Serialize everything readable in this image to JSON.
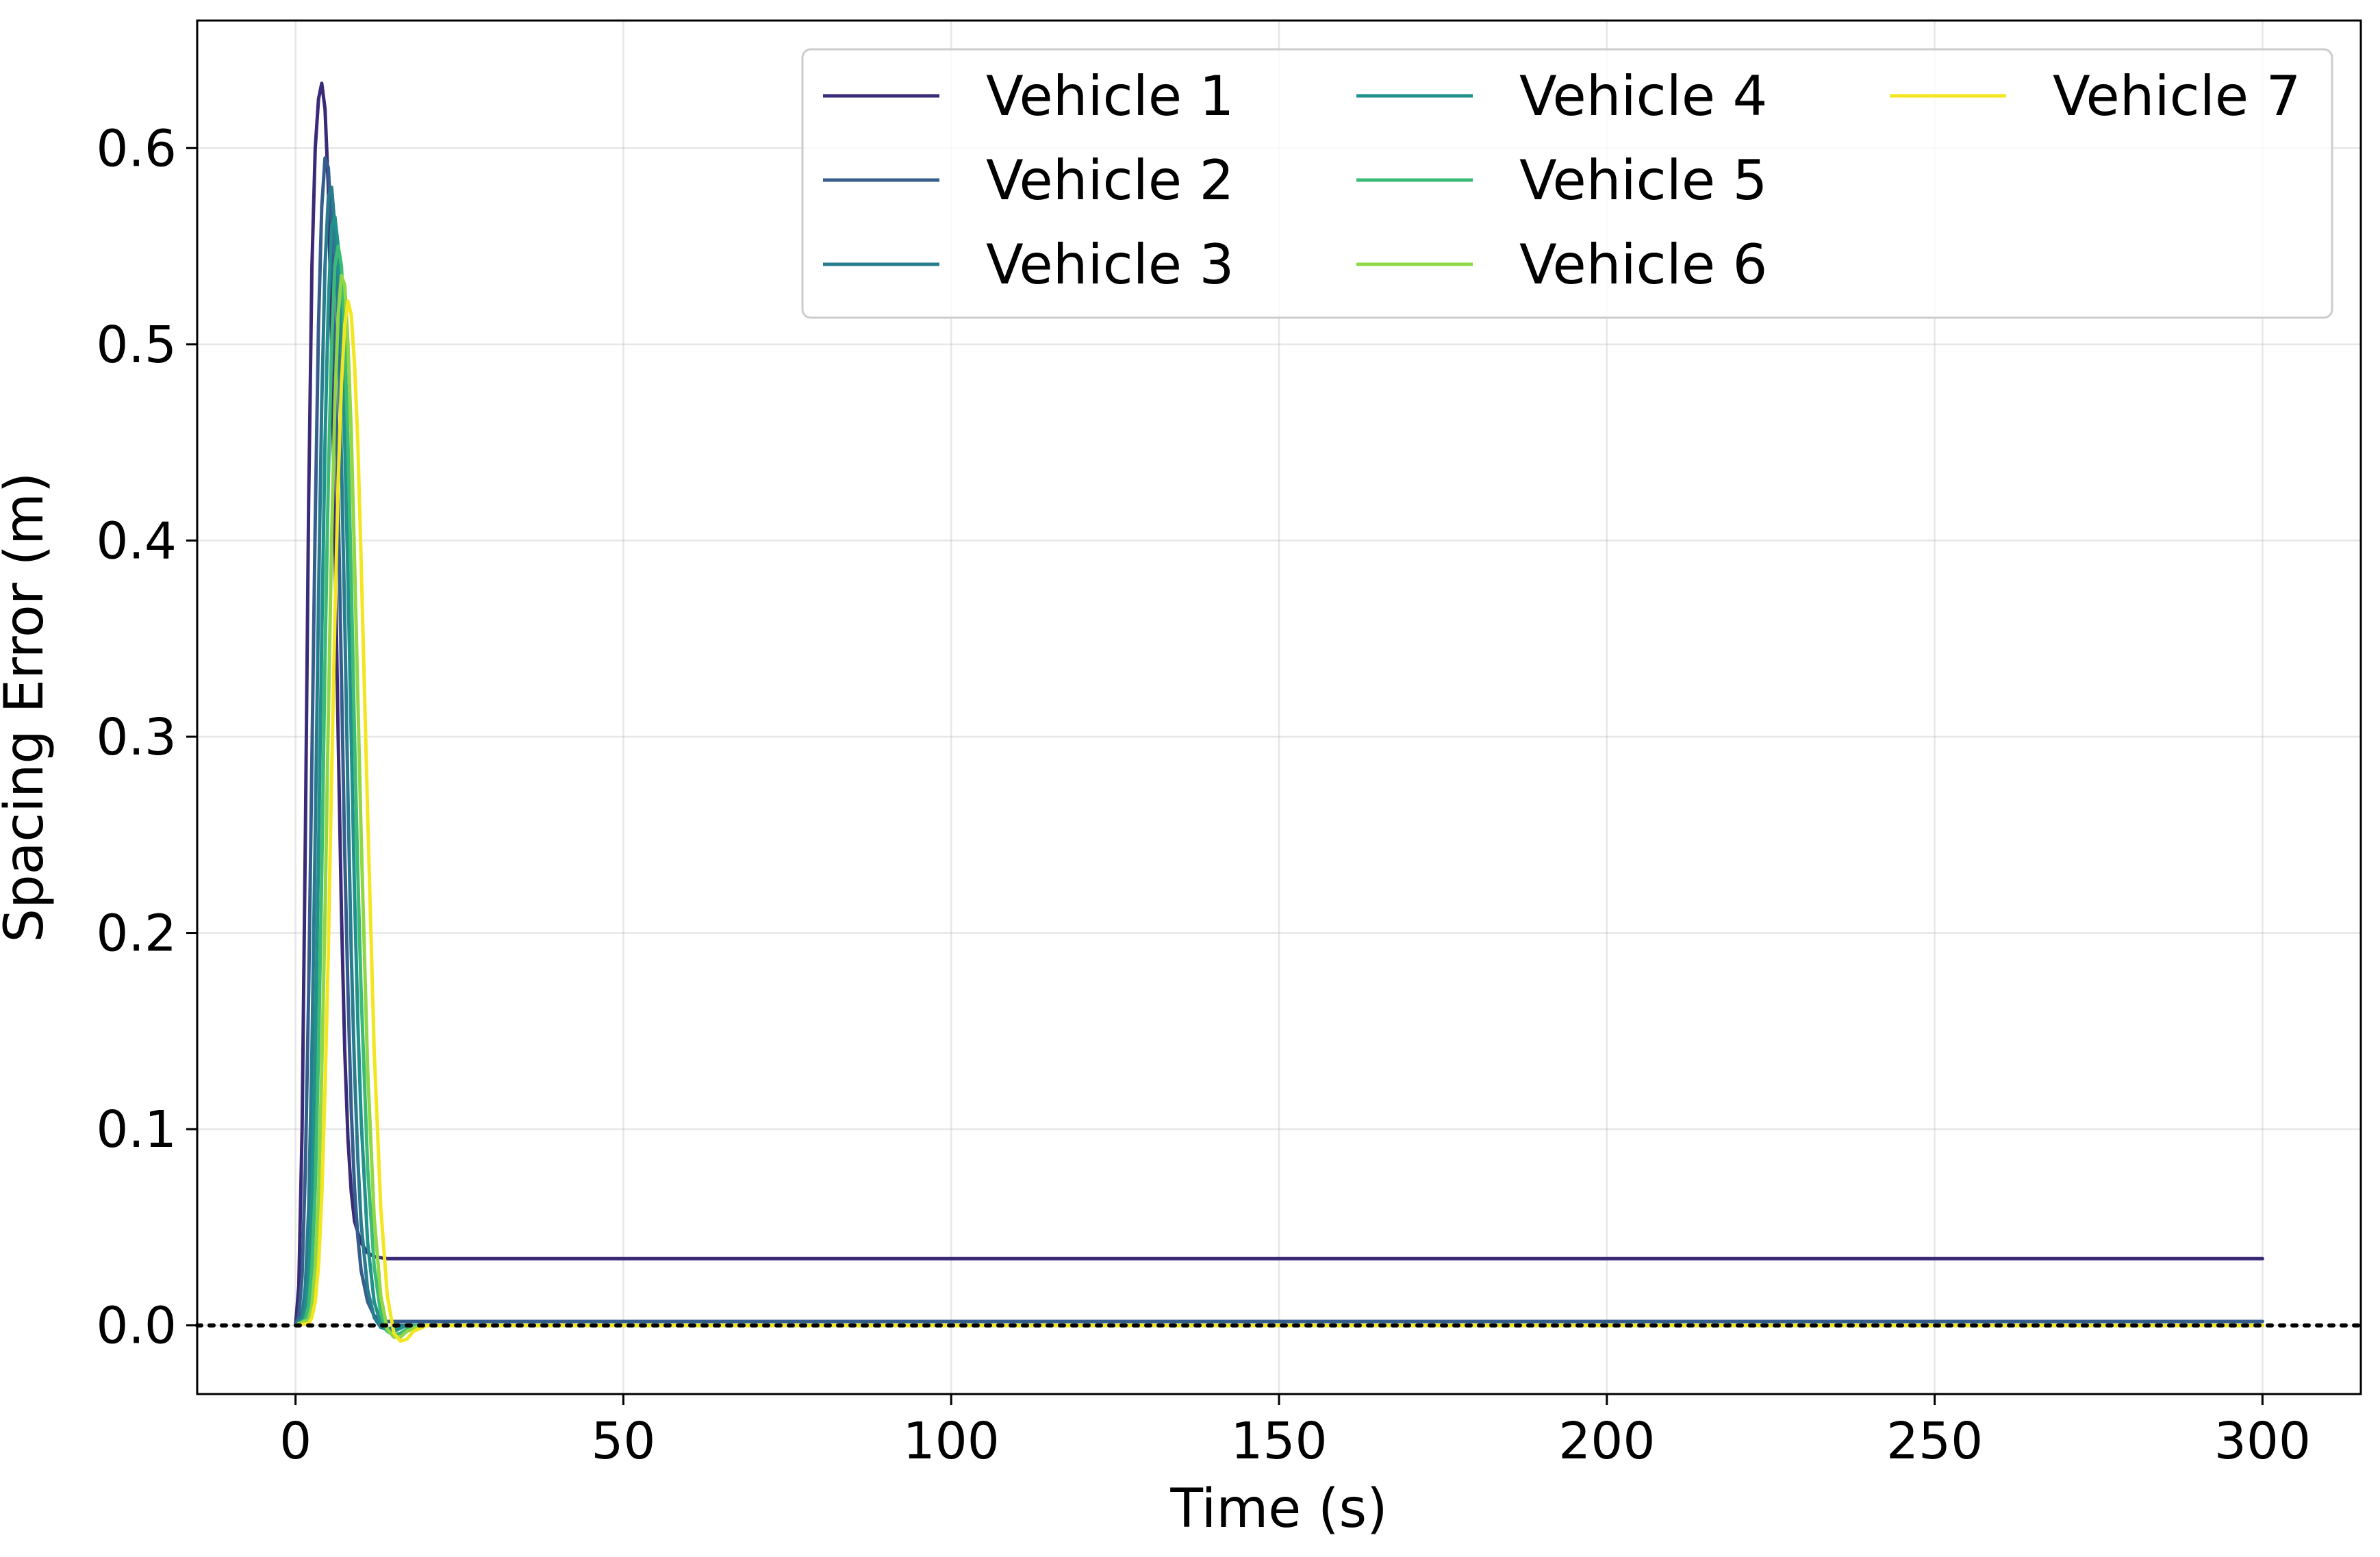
{
  "chart_data": {
    "type": "line",
    "title": "",
    "xlabel": "Time (s)",
    "ylabel": "Spacing Error (m)",
    "xlim": [
      -15,
      315
    ],
    "ylim": [
      -0.035,
      0.665
    ],
    "xticks": [
      0,
      50,
      100,
      150,
      200,
      250,
      300
    ],
    "yticks": [
      0.0,
      0.1,
      0.2,
      0.3,
      0.4,
      0.5,
      0.6
    ],
    "ytick_labels": [
      "0.0",
      "0.1",
      "0.2",
      "0.3",
      "0.4",
      "0.5",
      "0.6"
    ],
    "grid": true,
    "legend_position": "upper-right",
    "legend_columns": 3,
    "reference_line": {
      "y": 0.0,
      "style": "dotted",
      "color": "#000000"
    },
    "series": [
      {
        "name": "Vehicle 1",
        "color": "#3b2a78",
        "points": [
          [
            0,
            0
          ],
          [
            0.5,
            0.02
          ],
          [
            1,
            0.1
          ],
          [
            1.5,
            0.25
          ],
          [
            2,
            0.42
          ],
          [
            2.5,
            0.54
          ],
          [
            3,
            0.6
          ],
          [
            3.5,
            0.625
          ],
          [
            4,
            0.633
          ],
          [
            4.5,
            0.62
          ],
          [
            5,
            0.58
          ],
          [
            5.5,
            0.5
          ],
          [
            6,
            0.4
          ],
          [
            6.5,
            0.3
          ],
          [
            7,
            0.21
          ],
          [
            7.5,
            0.14
          ],
          [
            8,
            0.095
          ],
          [
            8.5,
            0.068
          ],
          [
            9,
            0.053
          ],
          [
            10,
            0.042
          ],
          [
            11,
            0.037
          ],
          [
            12,
            0.035
          ],
          [
            14,
            0.034
          ],
          [
            300,
            0.034
          ]
        ]
      },
      {
        "name": "Vehicle 2",
        "color": "#355e8d",
        "points": [
          [
            0,
            0
          ],
          [
            0.5,
            0.005
          ],
          [
            1,
            0.025
          ],
          [
            1.5,
            0.08
          ],
          [
            2,
            0.17
          ],
          [
            2.5,
            0.29
          ],
          [
            3,
            0.41
          ],
          [
            3.5,
            0.51
          ],
          [
            4,
            0.57
          ],
          [
            4.5,
            0.595
          ],
          [
            5,
            0.59
          ],
          [
            5.5,
            0.56
          ],
          [
            6,
            0.5
          ],
          [
            6.5,
            0.42
          ],
          [
            7,
            0.33
          ],
          [
            7.5,
            0.24
          ],
          [
            8,
            0.17
          ],
          [
            8.5,
            0.11
          ],
          [
            9,
            0.07
          ],
          [
            9.5,
            0.045
          ],
          [
            10,
            0.028
          ],
          [
            11,
            0.012
          ],
          [
            12,
            0.005
          ],
          [
            13,
            0.002
          ],
          [
            15,
            0.002
          ],
          [
            300,
            0.002
          ]
        ]
      },
      {
        "name": "Vehicle 3",
        "color": "#287c8e",
        "points": [
          [
            0,
            0
          ],
          [
            1,
            0.005
          ],
          [
            1.5,
            0.02
          ],
          [
            2,
            0.06
          ],
          [
            2.5,
            0.14
          ],
          [
            3,
            0.25
          ],
          [
            3.5,
            0.37
          ],
          [
            4,
            0.47
          ],
          [
            4.5,
            0.54
          ],
          [
            5,
            0.575
          ],
          [
            5.5,
            0.58
          ],
          [
            6,
            0.56
          ],
          [
            6.5,
            0.51
          ],
          [
            7,
            0.44
          ],
          [
            7.5,
            0.36
          ],
          [
            8,
            0.27
          ],
          [
            8.5,
            0.19
          ],
          [
            9,
            0.13
          ],
          [
            9.5,
            0.085
          ],
          [
            10,
            0.052
          ],
          [
            11,
            0.018
          ],
          [
            12,
            0.004
          ],
          [
            13,
            -0.001
          ],
          [
            14,
            -0.002
          ],
          [
            16,
            0.0
          ],
          [
            300,
            0.0
          ]
        ]
      },
      {
        "name": "Vehicle 4",
        "color": "#21918c",
        "points": [
          [
            0,
            0
          ],
          [
            1,
            0.002
          ],
          [
            1.5,
            0.008
          ],
          [
            2,
            0.025
          ],
          [
            2.5,
            0.065
          ],
          [
            3,
            0.14
          ],
          [
            3.5,
            0.24
          ],
          [
            4,
            0.35
          ],
          [
            4.5,
            0.45
          ],
          [
            5,
            0.52
          ],
          [
            5.5,
            0.56
          ],
          [
            6,
            0.565
          ],
          [
            6.5,
            0.55
          ],
          [
            7,
            0.51
          ],
          [
            7.5,
            0.45
          ],
          [
            8,
            0.38
          ],
          [
            8.5,
            0.3
          ],
          [
            9,
            0.22
          ],
          [
            9.5,
            0.155
          ],
          [
            10,
            0.105
          ],
          [
            11,
            0.042
          ],
          [
            12,
            0.012
          ],
          [
            13,
            0.001
          ],
          [
            14,
            -0.003
          ],
          [
            15,
            -0.003
          ],
          [
            17,
            0.0
          ],
          [
            300,
            0.0
          ]
        ]
      },
      {
        "name": "Vehicle 5",
        "color": "#3bbb75",
        "points": [
          [
            0,
            0
          ],
          [
            1.5,
            0.003
          ],
          [
            2,
            0.01
          ],
          [
            2.5,
            0.03
          ],
          [
            3,
            0.07
          ],
          [
            3.5,
            0.14
          ],
          [
            4,
            0.23
          ],
          [
            4.5,
            0.34
          ],
          [
            5,
            0.43
          ],
          [
            5.5,
            0.5
          ],
          [
            6,
            0.54
          ],
          [
            6.5,
            0.55
          ],
          [
            7,
            0.54
          ],
          [
            7.5,
            0.5
          ],
          [
            8,
            0.45
          ],
          [
            8.5,
            0.38
          ],
          [
            9,
            0.3
          ],
          [
            9.5,
            0.23
          ],
          [
            10,
            0.17
          ],
          [
            11,
            0.08
          ],
          [
            12,
            0.03
          ],
          [
            13,
            0.006
          ],
          [
            14,
            -0.003
          ],
          [
            15,
            -0.005
          ],
          [
            16,
            -0.004
          ],
          [
            18,
            0.0
          ],
          [
            300,
            0.0
          ]
        ]
      },
      {
        "name": "Vehicle 6",
        "color": "#8fd744",
        "points": [
          [
            0,
            0
          ],
          [
            2,
            0.003
          ],
          [
            2.5,
            0.01
          ],
          [
            3,
            0.03
          ],
          [
            3.5,
            0.065
          ],
          [
            4,
            0.13
          ],
          [
            4.5,
            0.21
          ],
          [
            5,
            0.31
          ],
          [
            5.5,
            0.4
          ],
          [
            6,
            0.47
          ],
          [
            6.5,
            0.515
          ],
          [
            7,
            0.535
          ],
          [
            7.5,
            0.53
          ],
          [
            8,
            0.5
          ],
          [
            8.5,
            0.455
          ],
          [
            9,
            0.39
          ],
          [
            9.5,
            0.32
          ],
          [
            10,
            0.25
          ],
          [
            11,
            0.13
          ],
          [
            12,
            0.055
          ],
          [
            13,
            0.015
          ],
          [
            14,
            -0.002
          ],
          [
            15,
            -0.006
          ],
          [
            16,
            -0.006
          ],
          [
            17,
            -0.003
          ],
          [
            19,
            0.0
          ],
          [
            300,
            0.0
          ]
        ]
      },
      {
        "name": "Vehicle 7",
        "color": "#f4e61e",
        "points": [
          [
            0,
            0
          ],
          [
            2,
            0.001
          ],
          [
            2.5,
            0.004
          ],
          [
            3,
            0.012
          ],
          [
            3.5,
            0.03
          ],
          [
            4,
            0.065
          ],
          [
            4.5,
            0.12
          ],
          [
            5,
            0.19
          ],
          [
            5.5,
            0.28
          ],
          [
            6,
            0.36
          ],
          [
            6.5,
            0.43
          ],
          [
            7,
            0.48
          ],
          [
            7.5,
            0.51
          ],
          [
            8,
            0.522
          ],
          [
            8.5,
            0.515
          ],
          [
            9,
            0.49
          ],
          [
            9.5,
            0.45
          ],
          [
            10,
            0.39
          ],
          [
            11,
            0.26
          ],
          [
            12,
            0.14
          ],
          [
            13,
            0.06
          ],
          [
            14,
            0.015
          ],
          [
            15,
            -0.004
          ],
          [
            16,
            -0.008
          ],
          [
            17,
            -0.007
          ],
          [
            18,
            -0.003
          ],
          [
            20,
            0.0
          ],
          [
            300,
            0.0
          ]
        ]
      }
    ]
  }
}
